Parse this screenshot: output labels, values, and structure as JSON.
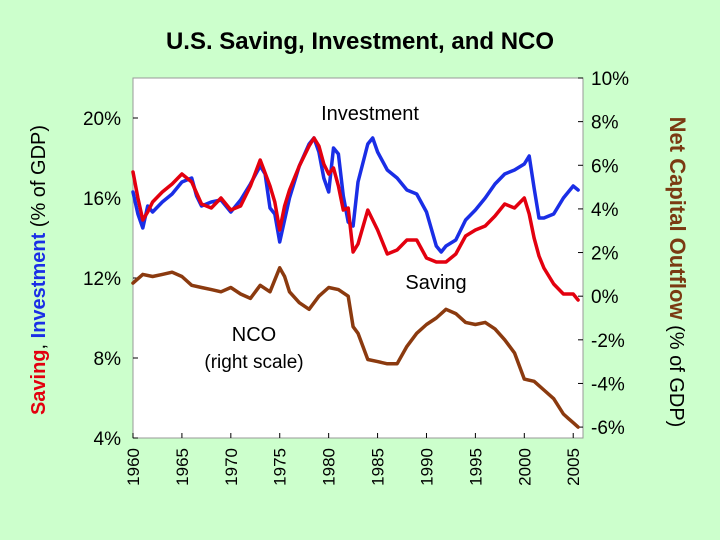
{
  "chart_data": {
    "type": "line",
    "title": "U.S. Saving, Investment, and NCO",
    "left_axis": {
      "label_parts": [
        {
          "text": "Saving",
          "color": "#e3000f",
          "bold": true
        },
        {
          "text": ", ",
          "color": "#000000",
          "bold": false
        },
        {
          "text": "Investment",
          "color": "#1a2ee6",
          "bold": true
        },
        {
          "text": " (% of GDP)",
          "color": "#000000",
          "bold": false
        }
      ],
      "ylim": [
        4,
        22
      ],
      "ticks": [
        4,
        8,
        12,
        16,
        20
      ],
      "tick_labels": [
        "4%",
        "8%",
        "12%",
        "16%",
        "20%"
      ]
    },
    "right_axis": {
      "label_bold": "Net Capital Outflow",
      "label_rest": "(% of GDP)",
      "ylim": [
        -6.5,
        10
      ],
      "ticks": [
        -6,
        -4,
        -2,
        0,
        2,
        4,
        6,
        8,
        10
      ],
      "tick_labels": [
        "-6%",
        "-4%",
        "-2%",
        "0%",
        "2%",
        "4%",
        "6%",
        "8%",
        "10%"
      ]
    },
    "x_axis": {
      "xlim": [
        1960,
        2006
      ],
      "ticks": [
        1960,
        1965,
        1970,
        1975,
        1980,
        1985,
        1990,
        1995,
        2000,
        2005
      ],
      "tick_labels": [
        "1960",
        "1965",
        "1970",
        "1975",
        "1980",
        "1985",
        "1990",
        "1995",
        "2000",
        "2005"
      ]
    },
    "colors": {
      "investment": "#1a2ee6",
      "saving": "#e3000f",
      "nco": "#8b3a0f",
      "plot_bg": "#ffffff",
      "page_bg": "#ccffcc"
    },
    "annotations": {
      "investment": "Investment",
      "saving": "Saving",
      "nco_line1": "NCO",
      "nco_line2": "(right scale)"
    },
    "series": [
      {
        "key": "investment",
        "axis": "left",
        "x": [
          1960,
          1960.5,
          1961,
          1961.5,
          1962,
          1963,
          1964,
          1965,
          1966,
          1966.5,
          1967,
          1968,
          1969,
          1970,
          1971,
          1972,
          1973,
          1973.5,
          1974,
          1974.5,
          1975,
          1975.5,
          1976,
          1977,
          1978,
          1978.5,
          1979,
          1979.5,
          1980,
          1980.5,
          1981,
          1981.5,
          1982,
          1982.5,
          1983,
          1984,
          1984.5,
          1985,
          1986,
          1987,
          1988,
          1989,
          1990,
          1991,
          1991.5,
          1992,
          1993,
          1994,
          1995,
          1996,
          1997,
          1998,
          1999,
          2000,
          2000.5,
          2001,
          2001.5,
          2002,
          2003,
          2004,
          2005,
          2005.5
        ],
        "values": [
          16.3,
          15.2,
          14.5,
          15.6,
          15.3,
          15.8,
          16.2,
          16.8,
          17.0,
          16.1,
          15.6,
          15.8,
          15.9,
          15.3,
          15.9,
          16.7,
          17.6,
          17.2,
          15.5,
          15.2,
          13.8,
          14.9,
          16.0,
          17.6,
          18.7,
          19.0,
          18.3,
          17.0,
          16.3,
          18.5,
          18.2,
          16.1,
          14.8,
          14.6,
          16.8,
          18.7,
          19.0,
          18.3,
          17.4,
          17.0,
          16.4,
          16.2,
          15.3,
          13.6,
          13.3,
          13.6,
          13.9,
          14.9,
          15.4,
          16.0,
          16.7,
          17.2,
          17.4,
          17.7,
          18.1,
          16.5,
          15.0,
          15.0,
          15.2,
          16.0,
          16.6,
          16.4
        ]
      },
      {
        "key": "saving",
        "axis": "left",
        "x": [
          1960,
          1960.5,
          1961,
          1961.5,
          1962,
          1963,
          1964,
          1965,
          1966,
          1967,
          1968,
          1969,
          1970,
          1971,
          1972,
          1973,
          1974,
          1974.5,
          1975,
          1975.5,
          1976,
          1977,
          1978,
          1978.5,
          1979,
          1979.5,
          1980,
          1980.5,
          1981,
          1981.5,
          1982,
          1982.5,
          1983,
          1984,
          1985,
          1986,
          1987,
          1988,
          1989,
          1990,
          1991,
          1992,
          1993,
          1994,
          1995,
          1996,
          1997,
          1998,
          1999,
          2000,
          2000.5,
          2001,
          2001.5,
          2002,
          2003,
          2004,
          2005,
          2005.5
        ],
        "values": [
          17.3,
          16.0,
          14.9,
          15.3,
          15.8,
          16.3,
          16.7,
          17.2,
          16.8,
          15.7,
          15.5,
          16.0,
          15.4,
          15.6,
          16.6,
          17.9,
          16.6,
          15.8,
          14.4,
          15.6,
          16.4,
          17.6,
          18.6,
          19.0,
          18.6,
          17.7,
          17.2,
          17.5,
          16.6,
          15.4,
          15.5,
          13.3,
          13.7,
          15.4,
          14.4,
          13.2,
          13.4,
          13.9,
          13.9,
          13.0,
          12.8,
          12.8,
          13.2,
          14.1,
          14.4,
          14.6,
          15.1,
          15.7,
          15.5,
          16.0,
          15.2,
          14.0,
          13.1,
          12.5,
          11.7,
          11.2,
          11.2,
          10.9
        ]
      },
      {
        "key": "nco",
        "axis": "right",
        "x": [
          1960,
          1961,
          1962,
          1963,
          1964,
          1965,
          1966,
          1967,
          1968,
          1969,
          1970,
          1971,
          1972,
          1973,
          1974,
          1975,
          1975.5,
          1976,
          1977,
          1978,
          1979,
          1980,
          1981,
          1982,
          1982.5,
          1983,
          1983.5,
          1984,
          1985,
          1986,
          1987,
          1988,
          1989,
          1990,
          1991,
          1992,
          1993,
          1994,
          1995,
          1996,
          1997,
          1998,
          1999,
          2000,
          2001,
          2002,
          2003,
          2004,
          2004.5,
          2005,
          2005.5
        ],
        "values": [
          0.6,
          1.0,
          0.9,
          1.0,
          1.1,
          0.9,
          0.5,
          0.4,
          0.3,
          0.2,
          0.4,
          0.1,
          -0.1,
          0.5,
          0.2,
          1.3,
          0.9,
          0.2,
          -0.3,
          -0.6,
          0.0,
          0.4,
          0.3,
          0.0,
          -1.4,
          -1.7,
          -2.3,
          -2.9,
          -3.0,
          -3.1,
          -3.1,
          -2.3,
          -1.7,
          -1.3,
          -1.0,
          -0.6,
          -0.8,
          -1.2,
          -1.3,
          -1.2,
          -1.5,
          -2.0,
          -2.6,
          -3.8,
          -3.9,
          -4.3,
          -4.7,
          -5.4,
          -5.6,
          -5.8,
          -6.0
        ]
      }
    ]
  }
}
